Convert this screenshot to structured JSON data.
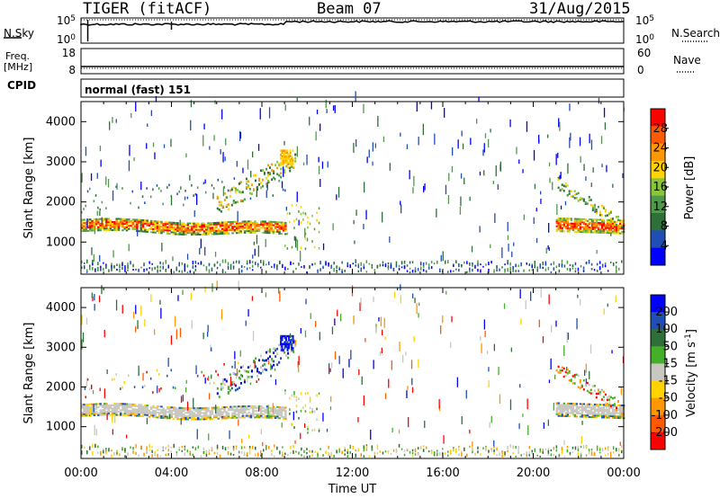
{
  "header": {
    "radar": "TIGER (fitACF)",
    "beam": "Beam 07",
    "date": "31/Aug/2015"
  },
  "sky_panel": {
    "left_label": "N.Sky",
    "right_label": "N.Search",
    "left_ticks": [
      "10^5",
      "10^0"
    ],
    "right_ticks": [
      "10^5",
      "10^0"
    ]
  },
  "freq_panel": {
    "left_label_1": "Freq.",
    "left_label_2": "[MHz]",
    "right_label": "Nave",
    "left_ticks": [
      "18",
      "8"
    ],
    "right_ticks": [
      "60",
      "0"
    ]
  },
  "cpid": {
    "label": "CPID",
    "value": "normal (fast) 151"
  },
  "colors": {
    "power_scale": [
      "#0000ff",
      "#1f4fb4",
      "#2e6f3a",
      "#4f9a4a",
      "#8ac43c",
      "#ffd400",
      "#ff9800",
      "#ff5a00",
      "#ff0000"
    ],
    "velocity_scale": [
      "#0000ff",
      "#1f4fb4",
      "#2e6f3a",
      "#44b02a",
      "#c8c8c0",
      "#ffd400",
      "#ff9800",
      "#ff5a00",
      "#ff0000"
    ]
  },
  "chart_data": [
    {
      "type": "heatmap",
      "title": "",
      "xlabel": "Time UT",
      "ylabel": "Slant Range [km]",
      "ylim": [
        200,
        4500
      ],
      "yticks": [
        1000,
        2000,
        3000,
        4000
      ],
      "xlim": [
        "00:00",
        "24:00"
      ],
      "colorbar": {
        "label": "Power [dB]",
        "ticks": [
          4,
          8,
          12,
          16,
          20,
          24,
          28
        ],
        "range": [
          0,
          32
        ]
      },
      "regions": [
        {
          "t": [
            0,
            9.0
          ],
          "range": [
            1200,
            1600
          ],
          "value": "high power band"
        },
        {
          "t": [
            8.8,
            9.4
          ],
          "range": [
            2900,
            3300
          ],
          "value": "echo patch"
        },
        {
          "t": [
            21.0,
            24.0
          ],
          "range": [
            1200,
            1600
          ],
          "value": "high power band"
        },
        {
          "t": [
            0,
            24.0
          ],
          "range": [
            200,
            500
          ],
          "value": "ground/near range noise"
        }
      ]
    },
    {
      "type": "heatmap",
      "title": "",
      "xlabel": "Time UT",
      "ylabel": "Slant Range [km]",
      "ylim": [
        200,
        4500
      ],
      "yticks": [
        1000,
        2000,
        3000,
        4000
      ],
      "xlim": [
        "00:00",
        "24:00"
      ],
      "xticks": [
        "00:00",
        "04:00",
        "08:00",
        "12:00",
        "16:00",
        "20:00",
        "00:00"
      ],
      "colorbar": {
        "label": "Velocity [m s^-1]",
        "ticks": [
          200,
          100,
          50,
          15,
          -15,
          -50,
          -100,
          -200
        ]
      },
      "regions": [
        {
          "t": [
            0,
            9.0
          ],
          "range": [
            1300,
            1500
          ],
          "value": "ground scatter (gray)"
        },
        {
          "t": [
            8.8,
            9.4
          ],
          "range": [
            2900,
            3300
          ],
          "value": "positive velocity"
        },
        {
          "t": [
            21.0,
            24.0
          ],
          "range": [
            1250,
            1550
          ],
          "value": "ground scatter (gray)"
        }
      ]
    }
  ]
}
